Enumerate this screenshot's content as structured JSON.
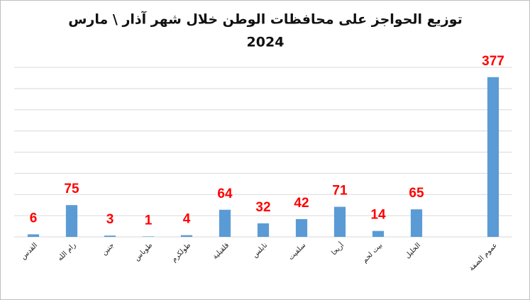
{
  "chart_data": {
    "type": "bar",
    "title": [
      "توزيع  الحواجز على محافظات الوطن خلال شهر آذار \\ مارس",
      "2024"
    ],
    "categories": [
      "القدس",
      "رام الله",
      "جنين",
      "طوباس",
      "طولكرم",
      "قلقيلية",
      "نابلس",
      "سلفيت",
      "أريحا",
      "بيت لحم",
      "الخليل",
      null,
      "عموم الضفة"
    ],
    "values": [
      6,
      75,
      3,
      1,
      4,
      64,
      32,
      42,
      71,
      14,
      65,
      null,
      377
    ],
    "color": "#5b9bd5",
    "label_color": "#ff0000",
    "ylim": [
      0,
      400
    ],
    "yticks": [
      0,
      50,
      100,
      150,
      200,
      250,
      300,
      350,
      400
    ],
    "ytick_labels": false,
    "grid": true
  }
}
